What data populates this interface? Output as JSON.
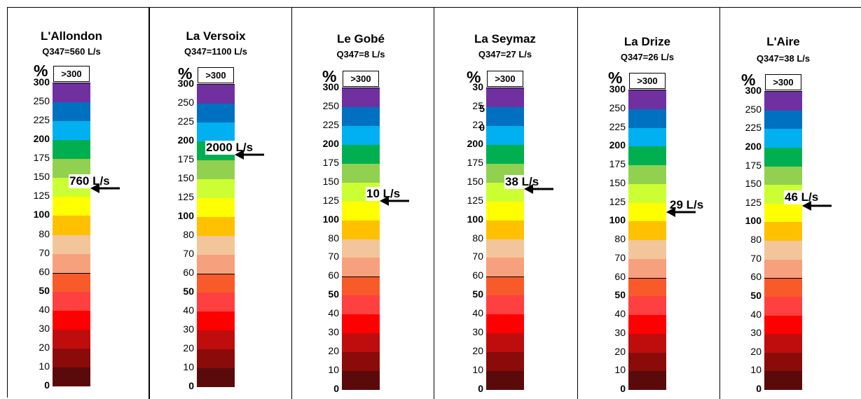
{
  "chart_data": {
    "type": "table",
    "scale_unit": "%",
    "top_label": ">300",
    "ticks": [
      "0",
      "10",
      "20",
      "30",
      "40",
      "50",
      "60",
      "70",
      "80",
      "100",
      "125",
      "150",
      "175",
      "200",
      "225",
      "250",
      "300"
    ],
    "tick_labels_per_panel": [
      [
        "0",
        "10",
        "20",
        "30",
        "40",
        "50",
        "60",
        "70",
        "80",
        "100",
        "125",
        "150",
        "175",
        "200",
        "225",
        "250",
        "300"
      ],
      [
        "0",
        "10",
        "20",
        "30",
        "40",
        "50",
        "60",
        "70",
        "80",
        "100",
        "125",
        "150",
        "175",
        "200",
        "225",
        "250",
        "300"
      ],
      [
        "0",
        "10",
        "20",
        "30",
        "40",
        "50",
        "60",
        "70",
        "80",
        "100",
        "125",
        "150",
        "175",
        "200",
        "225",
        "250",
        "300"
      ],
      [
        "0",
        "10",
        "20",
        "30",
        "40",
        "50",
        "60",
        "70",
        "80",
        "100",
        "125",
        "150",
        "175",
        "200",
        "22",
        "25",
        "30"
      ],
      [
        "0",
        "10",
        "20",
        "30",
        "40",
        "50",
        "60",
        "70",
        "80",
        "100",
        "125",
        "150",
        "175",
        "200",
        "225",
        "250",
        "300"
      ],
      [
        "0",
        "10",
        "20",
        "30",
        "40",
        "50",
        "60",
        "70",
        "80",
        "100",
        "125",
        "150",
        "175",
        "200",
        "225",
        "250",
        "300"
      ]
    ],
    "overlap_glyphs": [
      "",
      "",
      "",
      "5 0",
      "",
      ""
    ],
    "bold_ticks": [
      "0",
      "50",
      "100",
      "200",
      "300"
    ],
    "class_colors": [
      "#5a0a0a",
      "#8b0a0a",
      "#bf0d0d",
      "#ff0000",
      "#ff4040",
      "#f85a2a",
      "#f6a07e",
      "#f2c69a",
      "#ffc000",
      "#ffff00",
      "#ccff33",
      "#92d050",
      "#00b050",
      "#00b0f0",
      "#0070c0",
      "#7030a0"
    ],
    "panels": [
      {
        "name": "L'Allondon",
        "q347": "Q347=560 L/s",
        "flow_label": "760 L/s",
        "percent": 135.7
      },
      {
        "name": "La Versoix",
        "q347": "Q347=1100 L/s",
        "flow_label": "2000 L/s",
        "percent": 181.8
      },
      {
        "name": "Le Gobé",
        "q347": "Q347=8 L/s",
        "flow_label": "10 L/s",
        "percent": 125
      },
      {
        "name": "La Seymaz",
        "q347": "Q347=27 L/s",
        "flow_label": "38 L/s",
        "percent": 140.7
      },
      {
        "name": "La Drize",
        "q347": "Q347=26 L/s",
        "flow_label": "29 L/s",
        "percent": 111.5
      },
      {
        "name": "L'Aire",
        "q347": "Q347=38 L/s",
        "flow_label": "46 L/s",
        "percent": 121.1
      }
    ]
  }
}
